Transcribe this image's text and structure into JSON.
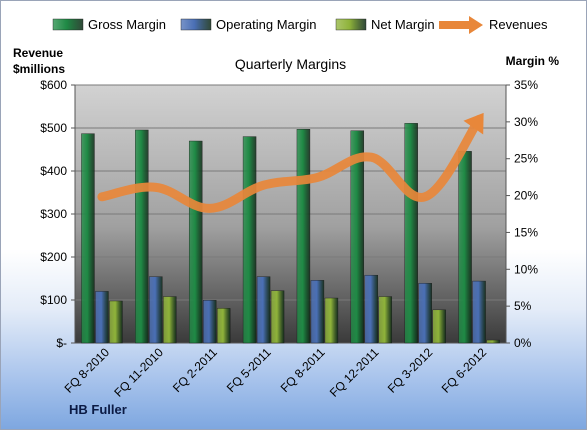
{
  "chart_data": {
    "type": "bar",
    "title": "Quarterly Margins",
    "ylabel_left": [
      "Revenue",
      "$millions"
    ],
    "ylabel_right": "Margin %",
    "company": "HB Fuller",
    "categories": [
      "FQ 8-2010",
      "FQ 11-2010",
      "FQ 2-2011",
      "FQ 5-2011",
      "FQ 8-2011",
      "FQ 12-2011",
      "FQ 3-2012",
      "FQ 6-2012"
    ],
    "ylim_left": [
      0,
      600
    ],
    "ylim_right": [
      0,
      35
    ],
    "left_ticks": [
      "$-",
      "$100",
      "$200",
      "$300",
      "$400",
      "$500",
      "$600"
    ],
    "right_ticks": [
      "0%",
      "5%",
      "10%",
      "15%",
      "20%",
      "25%",
      "30%",
      "35%"
    ],
    "series": [
      {
        "name": "Gross Margin",
        "axis": "right",
        "kind": "bar",
        "color": "#1f8a45",
        "values": [
          28.4,
          28.9,
          27.4,
          28.0,
          29.0,
          28.8,
          29.8,
          26.0
        ]
      },
      {
        "name": "Operating Margin",
        "axis": "right",
        "kind": "bar",
        "color": "#4a6fb5",
        "values": [
          7.0,
          9.0,
          5.8,
          9.0,
          8.5,
          9.2,
          8.1,
          8.4
        ]
      },
      {
        "name": "Net Margin",
        "axis": "right",
        "kind": "bar",
        "color": "#8fb33a",
        "values": [
          5.7,
          6.3,
          4.7,
          7.1,
          6.1,
          6.3,
          4.5,
          0.4
        ]
      },
      {
        "name": "Revenues",
        "axis": "left",
        "kind": "line",
        "color": "#e8873a",
        "values": [
          340,
          362,
          313,
          367,
          385,
          432,
          340,
          520
        ]
      }
    ],
    "legend_position": "top",
    "grid": "horizontal"
  }
}
